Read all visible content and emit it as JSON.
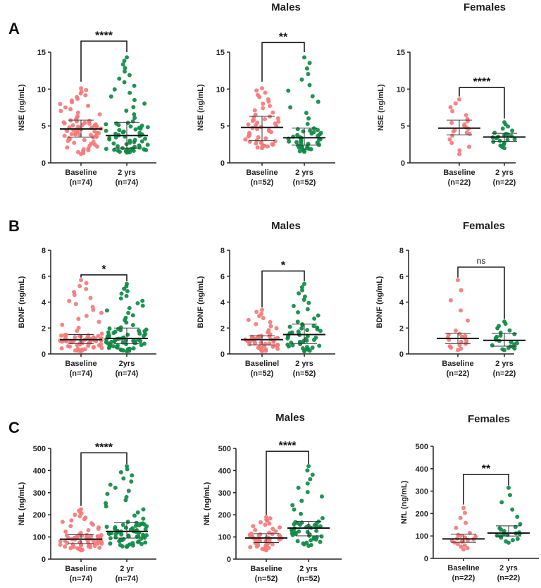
{
  "colors": {
    "baseline": "#f47a7a",
    "followup": "#0e8a45",
    "axis": "#222222"
  },
  "chart_data": [
    {
      "type": "scatter",
      "letter": "A",
      "title": "",
      "ylabel": "NSE (ng/mL)",
      "ylim": [
        0,
        15
      ],
      "yticks": [
        "0",
        "5",
        "10",
        "15"
      ],
      "significance": "****",
      "bracket": {
        "top": 16.5,
        "left_leg": 11,
        "right_leg": 15
      },
      "groups": [
        {
          "label": "Baseline",
          "n_label": "(n=74)",
          "n": 74,
          "median": 4.6,
          "q1": 3.5,
          "q3": 5.8,
          "min": 1.2,
          "max": 10.1
        },
        {
          "label": "2 yrs",
          "n_label": "(n=74)",
          "n": 74,
          "median": 3.7,
          "q1": 2.0,
          "q3": 5.5,
          "min": 1.4,
          "max": 14.3
        }
      ]
    },
    {
      "type": "scatter",
      "letter": "",
      "title": "Males",
      "ylabel": "NSE (ng/mL)",
      "ylim": [
        0,
        15
      ],
      "yticks": [
        "0",
        "5",
        "10",
        "15"
      ],
      "significance": "**",
      "bracket": {
        "top": 16.3,
        "left_leg": 11,
        "right_leg": 15
      },
      "groups": [
        {
          "label": "Baseline",
          "n_label": "(n=52)",
          "n": 52,
          "median": 4.8,
          "q1": 3.0,
          "q3": 6.3,
          "min": 2.0,
          "max": 10.1
        },
        {
          "label": "2 yrs",
          "n_label": "(n=52)",
          "n": 52,
          "median": 3.4,
          "q1": 2.4,
          "q3": 4.7,
          "min": 1.5,
          "max": 14.3
        }
      ]
    },
    {
      "type": "scatter",
      "letter": "",
      "title": "Females",
      "ylabel": "NSE (ng/mL)",
      "ylim": [
        0,
        15
      ],
      "yticks": [
        "0",
        "5",
        "10",
        "15"
      ],
      "significance": "****",
      "bracket": {
        "top": 10.2,
        "left_leg": 9,
        "right_leg": 6
      },
      "groups": [
        {
          "label": "Baseline",
          "n_label": "(n=22)",
          "n": 22,
          "median": 4.7,
          "q1": 3.8,
          "q3": 5.8,
          "min": 1.2,
          "max": 8.6
        },
        {
          "label": "2 yrs",
          "n_label": "(n=22)",
          "n": 22,
          "median": 3.5,
          "q1": 2.9,
          "q3": 4.0,
          "min": 2.0,
          "max": 5.5
        }
      ]
    },
    {
      "type": "scatter",
      "letter": "B",
      "title": "",
      "ylabel": "BDNF (ng/mL)",
      "ylim": [
        0,
        8
      ],
      "yticks": [
        "0",
        "2",
        "4",
        "6",
        "8"
      ],
      "significance": "*",
      "bracket": {
        "top": 6.1,
        "left_leg": 5.9,
        "right_leg": 5.6
      },
      "groups": [
        {
          "label": "Baseline",
          "n_label": "(n=74)",
          "n": 74,
          "median": 1.1,
          "q1": 0.8,
          "q3": 1.5,
          "min": 0.2,
          "max": 5.7
        },
        {
          "label": "2yrs",
          "n_label": "(n=74)",
          "n": 74,
          "median": 1.2,
          "q1": 0.8,
          "q3": 2.0,
          "min": 0.2,
          "max": 5.4
        }
      ]
    },
    {
      "type": "scatter",
      "letter": "",
      "title": "Males",
      "ylabel": "BDNF (ng/mL)",
      "ylim": [
        0,
        8
      ],
      "yticks": [
        "0",
        "2",
        "4",
        "6",
        "8"
      ],
      "significance": "*",
      "bracket": {
        "top": 6.4,
        "left_leg": 3.6,
        "right_leg": 5.6
      },
      "groups": [
        {
          "label": "Baselinel",
          "n_label": "(n=52)",
          "n": 52,
          "median": 1.1,
          "q1": 0.7,
          "q3": 1.4,
          "min": 0.2,
          "max": 3.4
        },
        {
          "label": "2 yrs",
          "n_label": "(n=52)",
          "n": 52,
          "median": 1.5,
          "q1": 0.8,
          "q3": 2.3,
          "min": 0.2,
          "max": 5.4
        }
      ]
    },
    {
      "type": "scatter",
      "letter": "",
      "title": "Females",
      "ylabel": "BDNF (ng/mL)",
      "ylim": [
        0,
        8
      ],
      "yticks": [
        "0",
        "2",
        "4",
        "6",
        "8"
      ],
      "significance": "ns",
      "bracket": {
        "top": 6.7,
        "left_leg": 5.9,
        "right_leg": 2.7
      },
      "groups": [
        {
          "label": "Baseline",
          "n_label": "(n=22)",
          "n": 22,
          "median": 1.2,
          "q1": 0.8,
          "q3": 1.6,
          "min": 0.3,
          "max": 5.7
        },
        {
          "label": "2 yrs",
          "n_label": "(n=22)",
          "n": 22,
          "median": 1.05,
          "q1": 0.6,
          "q3": 1.6,
          "min": 0.3,
          "max": 2.5
        }
      ]
    },
    {
      "type": "scatter",
      "letter": "C",
      "title": "",
      "ylabel": "NfL (ng/mL)",
      "ylim": [
        0,
        500
      ],
      "yticks": [
        "0",
        "100",
        "200",
        "300",
        "400",
        "500"
      ],
      "significance": "****",
      "bracket": {
        "top": 480,
        "left_leg": 240,
        "right_leg": 430
      },
      "groups": [
        {
          "label": "Baseline",
          "n_label": "(n=74)",
          "n": 74,
          "median": 90,
          "q1": 70,
          "q3": 110,
          "min": 40,
          "max": 225
        },
        {
          "label": "2 yr",
          "n_label": "(n=74)",
          "n": 74,
          "median": 125,
          "q1": 95,
          "q3": 165,
          "min": 55,
          "max": 420
        }
      ]
    },
    {
      "type": "scatter",
      "letter": "",
      "title": "Males",
      "ylabel": "NfL (ng/mL)",
      "ylim": [
        0,
        500
      ],
      "yticks": [
        "0",
        "100",
        "200",
        "300",
        "400",
        "500"
      ],
      "significance": "****",
      "bracket": {
        "top": 487,
        "left_leg": 200,
        "right_leg": 430
      },
      "groups": [
        {
          "label": "Baseline",
          "n_label": "(n=52)",
          "n": 52,
          "median": 95,
          "q1": 75,
          "q3": 115,
          "min": 40,
          "max": 190
        },
        {
          "label": "2 yrs",
          "n_label": "(n=52)",
          "n": 52,
          "median": 140,
          "q1": 105,
          "q3": 170,
          "min": 60,
          "max": 420
        }
      ]
    },
    {
      "type": "scatter",
      "letter": "",
      "title": "Females",
      "ylabel": "NfL (ng/mL)",
      "ylim": [
        0,
        500
      ],
      "yticks": [
        "0",
        "100",
        "200",
        "300",
        "400",
        "500"
      ],
      "significance": "**",
      "bracket": {
        "top": 375,
        "left_leg": 240,
        "right_leg": 325
      },
      "groups": [
        {
          "label": "Baseline",
          "n_label": "(n=22)",
          "n": 22,
          "median": 87,
          "q1": 72,
          "q3": 108,
          "min": 40,
          "max": 225
        },
        {
          "label": "2 yrs",
          "n_label": "(n=22)",
          "n": 22,
          "median": 113,
          "q1": 100,
          "q3": 145,
          "min": 70,
          "max": 315
        }
      ]
    }
  ]
}
